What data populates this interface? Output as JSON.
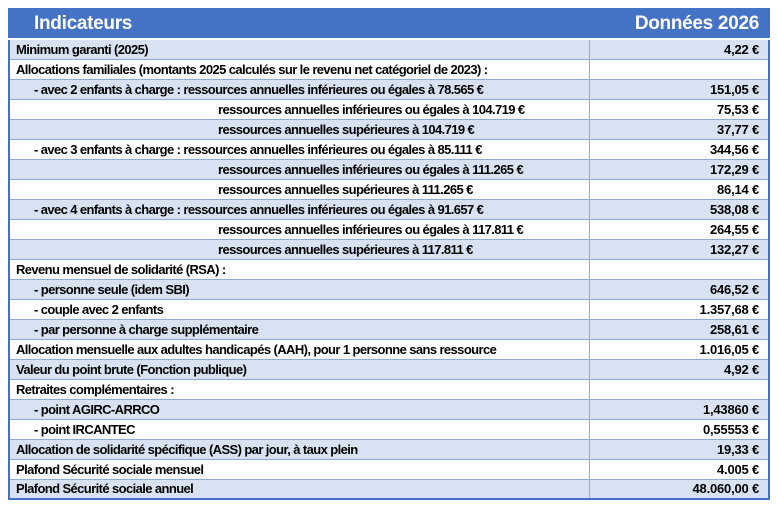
{
  "header": {
    "col1": "Indicateurs",
    "col2": "Données 2026"
  },
  "colors": {
    "header_bg": "#4472c4",
    "band_bg": "#d9e2f2",
    "grid_border": "#8eaadb",
    "outer_border": "#4472c4",
    "header_text": "#ffffff",
    "body_text": "#000000"
  },
  "rows": [
    {
      "label": "Minimum garanti (2025)",
      "value": "4,22 €",
      "indent": "main",
      "shaded": true
    },
    {
      "label": "Allocations familiales (montants 2025 calculés sur le revenu net catégoriel de 2023) :",
      "value": "",
      "indent": "main",
      "shaded": false
    },
    {
      "label": "- avec 2 enfants à charge : ressources annuelles inférieures ou égales à 78.565 €",
      "value": "151,05 €",
      "indent": "sub",
      "shaded": true
    },
    {
      "label": "ressources annuelles inférieures ou égales à 104.719 €",
      "value": "75,53 €",
      "indent": "cont",
      "shaded": false
    },
    {
      "label": "ressources annuelles supérieures à 104.719 €",
      "value": "37,77 €",
      "indent": "cont",
      "shaded": true
    },
    {
      "label": "- avec 3 enfants à charge : ressources annuelles inférieures ou égales à 85.111 €",
      "value": "344,56 €",
      "indent": "sub",
      "shaded": false
    },
    {
      "label": "ressources annuelles inférieures ou égales à 111.265 €",
      "value": "172,29 €",
      "indent": "cont",
      "shaded": true
    },
    {
      "label": "ressources annuelles supérieures à 111.265 €",
      "value": "86,14 €",
      "indent": "cont",
      "shaded": false
    },
    {
      "label": "- avec 4 enfants à charge : ressources annuelles inférieures ou égales à 91.657 €",
      "value": "538,08 €",
      "indent": "sub",
      "shaded": true
    },
    {
      "label": "ressources annuelles inférieures ou égales à 117.811 €",
      "value": "264,55 €",
      "indent": "cont",
      "shaded": false
    },
    {
      "label": "ressources annuelles supérieures à 117.811 €",
      "value": "132,27 €",
      "indent": "cont",
      "shaded": true
    },
    {
      "label": "Revenu mensuel de solidarité (RSA) :",
      "value": "",
      "indent": "main",
      "shaded": false
    },
    {
      "label": "- personne seule (idem SBI)",
      "value": "646,52 €",
      "indent": "sub",
      "shaded": true
    },
    {
      "label": "- couple avec 2 enfants",
      "value": "1.357,68 €",
      "indent": "sub",
      "shaded": false
    },
    {
      "label": "- par personne à charge supplémentaire",
      "value": "258,61 €",
      "indent": "sub",
      "shaded": true
    },
    {
      "label": "Allocation mensuelle aux adultes handicapés (AAH), pour 1 personne sans ressource",
      "value": "1.016,05 €",
      "indent": "main",
      "shaded": false
    },
    {
      "label": "Valeur du point brute (Fonction publique)",
      "value": "4,92 €",
      "indent": "main",
      "shaded": true
    },
    {
      "label": "Retraites complémentaires :",
      "value": "",
      "indent": "main",
      "shaded": false
    },
    {
      "label": "- point AGIRC-ARRCO",
      "value": "1,43860 €",
      "indent": "sub",
      "shaded": true
    },
    {
      "label": "- point IRCANTEC",
      "value": "0,55553 €",
      "indent": "sub",
      "shaded": false
    },
    {
      "label": "Allocation de solidarité spécifique (ASS) par jour, à taux plein",
      "value": "19,33 €",
      "indent": "main",
      "shaded": true
    },
    {
      "label": "Plafond Sécurité sociale mensuel",
      "value": "4.005 €",
      "indent": "main",
      "shaded": false
    },
    {
      "label": "Plafond Sécurité sociale annuel",
      "value": "48.060,00 €",
      "indent": "main",
      "shaded": true
    }
  ]
}
